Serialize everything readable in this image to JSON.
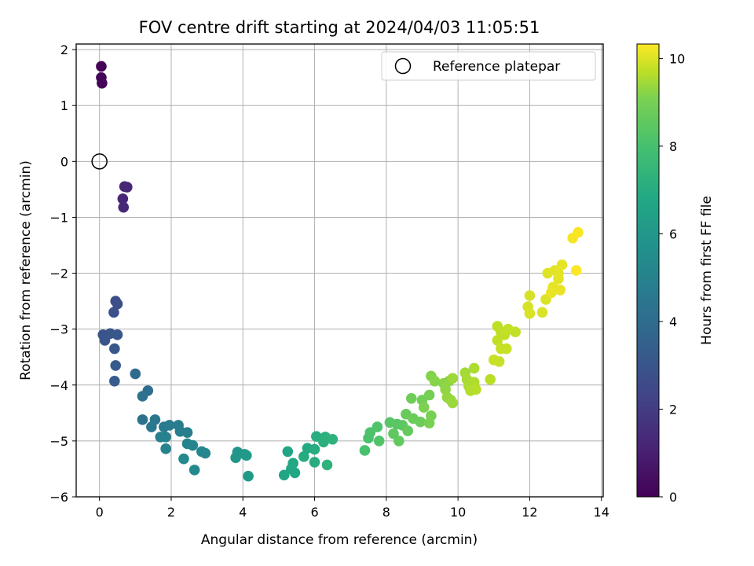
{
  "chart_data": {
    "type": "scatter",
    "title": "FOV centre drift starting at 2024/04/03 11:05:51",
    "xlabel": "Angular distance from reference (arcmin)",
    "ylabel": "Rotation from reference (arcmin)",
    "xlim": [
      -0.65,
      14.05
    ],
    "ylim": [
      -6,
      2.1
    ],
    "xticks": [
      0,
      2,
      4,
      6,
      8,
      10,
      12,
      14
    ],
    "yticks": [
      -6,
      -5,
      -4,
      -3,
      -2,
      -1,
      0,
      1,
      2
    ],
    "grid": true,
    "legend": {
      "position": "top-right",
      "label": "Reference platepar",
      "marker": "open-circle"
    },
    "reference_point": {
      "x": 0,
      "y": 0
    },
    "colorbar": {
      "label": "Hours from first FF file",
      "min": 0,
      "max": 10.33,
      "ticks": [
        0,
        2,
        4,
        6,
        8,
        10
      ],
      "colormap": "viridis"
    },
    "points": [
      {
        "x": 0.05,
        "y": 1.7,
        "c": 0.05
      },
      {
        "x": 0.05,
        "y": 1.5,
        "c": 0.1
      },
      {
        "x": 0.07,
        "y": 1.4,
        "c": 0.15
      },
      {
        "x": 0.7,
        "y": -0.45,
        "c": 1.05
      },
      {
        "x": 0.77,
        "y": -0.46,
        "c": 1.1
      },
      {
        "x": 0.65,
        "y": -0.67,
        "c": 1.15
      },
      {
        "x": 0.67,
        "y": -0.82,
        "c": 1.2
      },
      {
        "x": 0.45,
        "y": -2.5,
        "c": 2.4
      },
      {
        "x": 0.5,
        "y": -2.55,
        "c": 2.45
      },
      {
        "x": 0.4,
        "y": -2.7,
        "c": 2.5
      },
      {
        "x": 0.1,
        "y": -3.1,
        "c": 2.65
      },
      {
        "x": 0.15,
        "y": -3.2,
        "c": 2.7
      },
      {
        "x": 0.3,
        "y": -3.08,
        "c": 2.75
      },
      {
        "x": 0.5,
        "y": -3.1,
        "c": 2.8
      },
      {
        "x": 0.42,
        "y": -3.35,
        "c": 2.85
      },
      {
        "x": 0.45,
        "y": -3.65,
        "c": 2.9
      },
      {
        "x": 0.42,
        "y": -3.93,
        "c": 2.95
      },
      {
        "x": 1.0,
        "y": -3.8,
        "c": 3.6
      },
      {
        "x": 1.35,
        "y": -4.1,
        "c": 3.7
      },
      {
        "x": 1.2,
        "y": -4.2,
        "c": 3.8
      },
      {
        "x": 1.2,
        "y": -4.62,
        "c": 3.9
      },
      {
        "x": 1.55,
        "y": -4.62,
        "c": 4.0
      },
      {
        "x": 1.45,
        "y": -4.75,
        "c": 4.1
      },
      {
        "x": 1.8,
        "y": -4.75,
        "c": 4.2
      },
      {
        "x": 1.95,
        "y": -4.72,
        "c": 4.25
      },
      {
        "x": 2.2,
        "y": -4.72,
        "c": 4.3
      },
      {
        "x": 2.25,
        "y": -4.83,
        "c": 4.35
      },
      {
        "x": 2.45,
        "y": -4.85,
        "c": 4.4
      },
      {
        "x": 1.7,
        "y": -4.93,
        "c": 4.45
      },
      {
        "x": 1.85,
        "y": -4.93,
        "c": 4.5
      },
      {
        "x": 1.85,
        "y": -5.14,
        "c": 4.55
      },
      {
        "x": 2.45,
        "y": -5.05,
        "c": 4.6
      },
      {
        "x": 2.6,
        "y": -5.08,
        "c": 4.65
      },
      {
        "x": 2.85,
        "y": -5.19,
        "c": 4.7
      },
      {
        "x": 2.95,
        "y": -5.22,
        "c": 4.75
      },
      {
        "x": 2.35,
        "y": -5.32,
        "c": 4.8
      },
      {
        "x": 2.65,
        "y": -5.52,
        "c": 4.85
      },
      {
        "x": 3.85,
        "y": -5.2,
        "c": 5.4
      },
      {
        "x": 3.8,
        "y": -5.3,
        "c": 5.45
      },
      {
        "x": 4.05,
        "y": -5.24,
        "c": 5.5
      },
      {
        "x": 4.1,
        "y": -5.26,
        "c": 5.55
      },
      {
        "x": 4.15,
        "y": -5.63,
        "c": 5.6
      },
      {
        "x": 5.25,
        "y": -5.19,
        "c": 6.0
      },
      {
        "x": 5.15,
        "y": -5.61,
        "c": 6.05
      },
      {
        "x": 5.35,
        "y": -5.5,
        "c": 6.1
      },
      {
        "x": 5.45,
        "y": -5.57,
        "c": 6.15
      },
      {
        "x": 5.4,
        "y": -5.4,
        "c": 6.2
      },
      {
        "x": 5.8,
        "y": -5.13,
        "c": 6.25
      },
      {
        "x": 5.7,
        "y": -5.28,
        "c": 6.3
      },
      {
        "x": 6.0,
        "y": -5.15,
        "c": 6.35
      },
      {
        "x": 6.0,
        "y": -5.38,
        "c": 6.4
      },
      {
        "x": 6.05,
        "y": -4.92,
        "c": 6.45
      },
      {
        "x": 6.25,
        "y": -5.02,
        "c": 6.5
      },
      {
        "x": 6.3,
        "y": -4.93,
        "c": 6.55
      },
      {
        "x": 6.5,
        "y": -4.97,
        "c": 6.6
      },
      {
        "x": 6.35,
        "y": -5.43,
        "c": 6.65
      },
      {
        "x": 7.4,
        "y": -5.17,
        "c": 7.3
      },
      {
        "x": 7.5,
        "y": -4.95,
        "c": 7.35
      },
      {
        "x": 7.55,
        "y": -4.85,
        "c": 7.4
      },
      {
        "x": 7.75,
        "y": -4.75,
        "c": 7.45
      },
      {
        "x": 7.8,
        "y": -5.0,
        "c": 7.5
      },
      {
        "x": 8.1,
        "y": -4.67,
        "c": 7.6
      },
      {
        "x": 8.3,
        "y": -4.7,
        "c": 7.65
      },
      {
        "x": 8.45,
        "y": -4.72,
        "c": 7.7
      },
      {
        "x": 8.2,
        "y": -4.87,
        "c": 7.75
      },
      {
        "x": 8.35,
        "y": -5.0,
        "c": 7.8
      },
      {
        "x": 8.6,
        "y": -4.82,
        "c": 7.85
      },
      {
        "x": 8.55,
        "y": -4.52,
        "c": 7.9
      },
      {
        "x": 8.75,
        "y": -4.6,
        "c": 7.95
      },
      {
        "x": 8.95,
        "y": -4.66,
        "c": 8.0
      },
      {
        "x": 8.7,
        "y": -4.24,
        "c": 8.05
      },
      {
        "x": 9.0,
        "y": -4.27,
        "c": 8.1
      },
      {
        "x": 9.2,
        "y": -4.18,
        "c": 8.15
      },
      {
        "x": 9.25,
        "y": -4.55,
        "c": 8.2
      },
      {
        "x": 9.2,
        "y": -4.68,
        "c": 8.25
      },
      {
        "x": 9.05,
        "y": -4.4,
        "c": 8.3
      },
      {
        "x": 9.25,
        "y": -3.84,
        "c": 8.4
      },
      {
        "x": 9.35,
        "y": -3.93,
        "c": 8.45
      },
      {
        "x": 9.6,
        "y": -3.97,
        "c": 8.5
      },
      {
        "x": 9.75,
        "y": -3.93,
        "c": 8.55
      },
      {
        "x": 9.65,
        "y": -4.08,
        "c": 8.6
      },
      {
        "x": 9.7,
        "y": -4.22,
        "c": 8.65
      },
      {
        "x": 9.8,
        "y": -4.27,
        "c": 8.7
      },
      {
        "x": 9.85,
        "y": -4.32,
        "c": 8.75
      },
      {
        "x": 9.85,
        "y": -3.88,
        "c": 8.8
      },
      {
        "x": 10.2,
        "y": -3.78,
        "c": 8.9
      },
      {
        "x": 10.25,
        "y": -3.9,
        "c": 8.95
      },
      {
        "x": 10.3,
        "y": -4.02,
        "c": 9.0
      },
      {
        "x": 10.45,
        "y": -3.7,
        "c": 9.05
      },
      {
        "x": 10.45,
        "y": -3.95,
        "c": 9.1
      },
      {
        "x": 10.35,
        "y": -4.1,
        "c": 9.15
      },
      {
        "x": 10.5,
        "y": -4.08,
        "c": 9.2
      },
      {
        "x": 10.9,
        "y": -3.9,
        "c": 9.25
      },
      {
        "x": 11.1,
        "y": -2.95,
        "c": 9.3
      },
      {
        "x": 11.2,
        "y": -3.05,
        "c": 9.32
      },
      {
        "x": 11.1,
        "y": -3.2,
        "c": 9.34
      },
      {
        "x": 11.3,
        "y": -3.1,
        "c": 9.36
      },
      {
        "x": 11.4,
        "y": -3.0,
        "c": 9.38
      },
      {
        "x": 11.6,
        "y": -3.05,
        "c": 9.4
      },
      {
        "x": 11.2,
        "y": -3.35,
        "c": 9.42
      },
      {
        "x": 11.35,
        "y": -3.35,
        "c": 9.44
      },
      {
        "x": 11.0,
        "y": -3.55,
        "c": 9.46
      },
      {
        "x": 11.15,
        "y": -3.58,
        "c": 9.48
      },
      {
        "x": 12.0,
        "y": -2.4,
        "c": 9.7
      },
      {
        "x": 11.95,
        "y": -2.6,
        "c": 9.72
      },
      {
        "x": 12.0,
        "y": -2.72,
        "c": 9.74
      },
      {
        "x": 12.35,
        "y": -2.7,
        "c": 9.76
      },
      {
        "x": 12.45,
        "y": -2.47,
        "c": 9.78
      },
      {
        "x": 12.5,
        "y": -2.0,
        "c": 9.85
      },
      {
        "x": 12.7,
        "y": -1.95,
        "c": 9.88
      },
      {
        "x": 12.8,
        "y": -2.0,
        "c": 9.9
      },
      {
        "x": 12.8,
        "y": -2.1,
        "c": 9.92
      },
      {
        "x": 12.9,
        "y": -1.85,
        "c": 9.95
      },
      {
        "x": 12.65,
        "y": -2.25,
        "c": 9.97
      },
      {
        "x": 12.85,
        "y": -2.3,
        "c": 9.99
      },
      {
        "x": 12.6,
        "y": -2.35,
        "c": 10.0
      },
      {
        "x": 13.2,
        "y": -1.37,
        "c": 10.2
      },
      {
        "x": 13.35,
        "y": -1.27,
        "c": 10.25
      },
      {
        "x": 13.3,
        "y": -1.95,
        "c": 10.3
      }
    ]
  }
}
